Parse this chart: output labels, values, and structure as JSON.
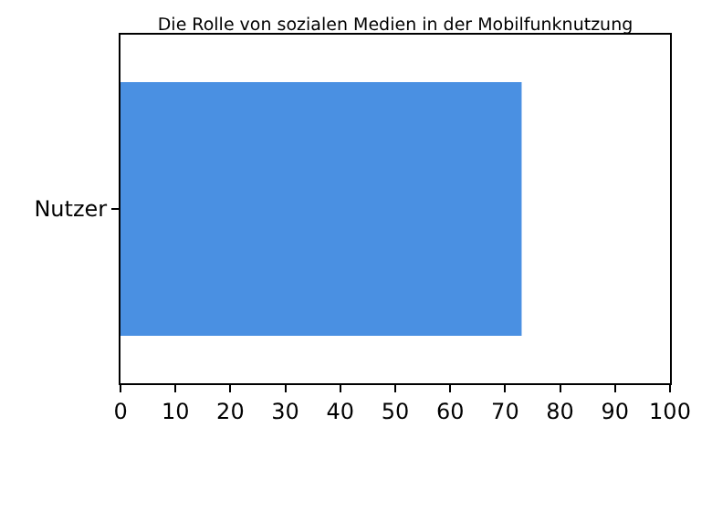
{
  "chart_data": {
    "type": "bar",
    "title": "Die Rolle von sozialen Medien in der Mobilfunknutzung",
    "orientation": "horizontal",
    "categories": [
      "Nutzer"
    ],
    "values": [
      73
    ],
    "color": "#4a90e2",
    "xlim": [
      0,
      100
    ],
    "xticks": [
      0,
      10,
      20,
      30,
      40,
      50,
      60,
      70,
      80,
      90,
      100
    ]
  }
}
